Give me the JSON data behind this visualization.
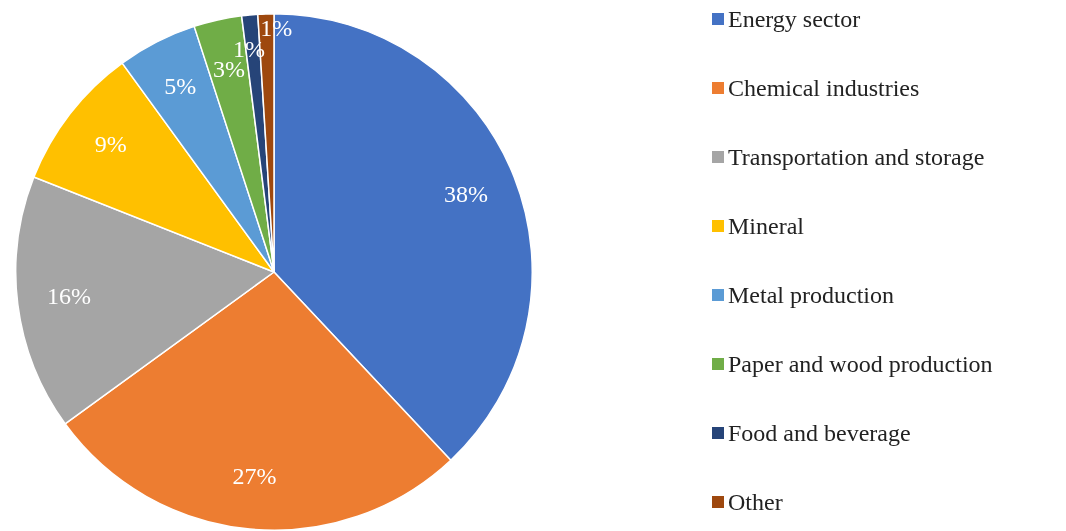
{
  "chart_data": {
    "type": "pie",
    "categories": [
      "Energy sector",
      "Chemical industries",
      "Transportation and storage",
      "Mineral",
      "Metal production",
      "Paper and wood production",
      "Food and beverage",
      "Other"
    ],
    "values": [
      38,
      27,
      16,
      9,
      5,
      3,
      1,
      1
    ],
    "colors": [
      "#4472c4",
      "#ed7d31",
      "#a5a5a5",
      "#ffc000",
      "#5b9bd5",
      "#70ad47",
      "#264478",
      "#9e480e"
    ],
    "value_labels": [
      "38%",
      "27%",
      "16%",
      "9%",
      "5%",
      "3%",
      "1%",
      "1%"
    ],
    "legend": "right"
  }
}
